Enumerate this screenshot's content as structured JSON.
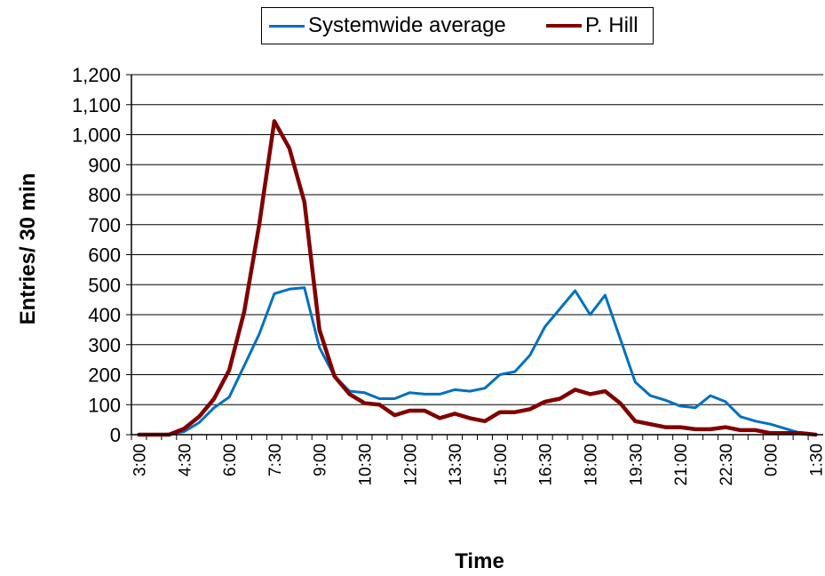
{
  "chart_data": {
    "type": "line",
    "xlabel": "Time",
    "ylabel": "Entries/ 30 min",
    "ylim": [
      0,
      1200
    ],
    "yticks": [
      0,
      100,
      200,
      300,
      400,
      500,
      600,
      700,
      800,
      900,
      1000,
      1100,
      1200
    ],
    "ytick_labels": [
      "0",
      "100",
      "200",
      "300",
      "400",
      "500",
      "600",
      "700",
      "800",
      "900",
      "1,000",
      "1,100",
      "1,200"
    ],
    "x": [
      "3:00",
      "3:30",
      "4:00",
      "4:30",
      "5:00",
      "5:30",
      "6:00",
      "6:30",
      "7:00",
      "7:30",
      "8:00",
      "8:30",
      "9:00",
      "9:30",
      "10:00",
      "10:30",
      "11:00",
      "11:30",
      "12:00",
      "12:30",
      "13:00",
      "13:30",
      "14:00",
      "14:30",
      "15:00",
      "15:30",
      "16:00",
      "16:30",
      "17:00",
      "17:30",
      "18:00",
      "18:30",
      "19:00",
      "19:30",
      "20:00",
      "20:30",
      "21:00",
      "21:30",
      "22:00",
      "22:30",
      "23:00",
      "23:30",
      "0:00",
      "0:30",
      "1:00",
      "1:30"
    ],
    "xtick_labels": [
      "3:00",
      "4:30",
      "6:00",
      "7:30",
      "9:00",
      "10:30",
      "12:00",
      "13:30",
      "15:00",
      "16:30",
      "18:00",
      "19:30",
      "21:00",
      "22:30",
      "0:00",
      "1:30"
    ],
    "grid": "horizontal",
    "legend_position": "top",
    "series": [
      {
        "name": "Systemwide average",
        "color": "#0070C0",
        "values": [
          0,
          0,
          2,
          10,
          40,
          90,
          125,
          230,
          335,
          470,
          485,
          490,
          290,
          195,
          145,
          140,
          120,
          120,
          140,
          135,
          135,
          150,
          145,
          155,
          200,
          210,
          265,
          360,
          420,
          480,
          400,
          465,
          320,
          175,
          130,
          115,
          95,
          90,
          130,
          110,
          60,
          45,
          35,
          20,
          5,
          0
        ]
      },
      {
        "name": "P. Hill",
        "color": "#800000",
        "values": [
          0,
          0,
          0,
          20,
          60,
          120,
          215,
          410,
          700,
          1045,
          955,
          775,
          350,
          195,
          135,
          105,
          100,
          65,
          80,
          80,
          55,
          70,
          55,
          45,
          75,
          75,
          85,
          110,
          120,
          150,
          135,
          145,
          105,
          45,
          35,
          25,
          25,
          18,
          18,
          25,
          15,
          15,
          5,
          5,
          5,
          0
        ]
      }
    ]
  }
}
